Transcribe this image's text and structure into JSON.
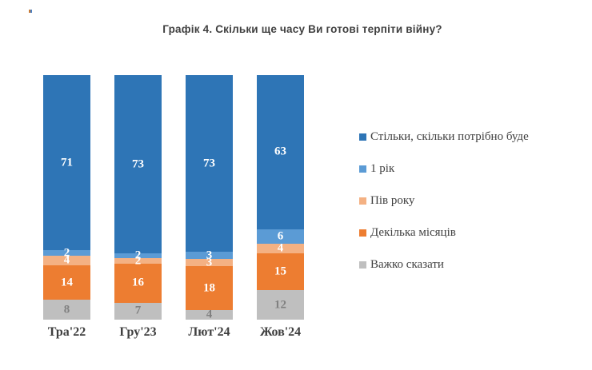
{
  "chart_data": {
    "type": "bar",
    "stacked": true,
    "orientation": "vertical",
    "title": "Графік 4. Скільки ще часу Ви готові терпіти війну?",
    "categories": [
      "Тра'22",
      "Гру'23",
      "Лют'24",
      "Жов'24"
    ],
    "series": [
      {
        "name": "Стільки, скільки потрібно буде",
        "color": "#2E75B6",
        "label_color": "#FFFFFF",
        "values": [
          71,
          73,
          73,
          63
        ]
      },
      {
        "name": "1 рік",
        "color": "#5B9BD5",
        "label_color": "#FFFFFF",
        "values": [
          2,
          2,
          3,
          6
        ]
      },
      {
        "name": "Пів року",
        "color": "#F4B183",
        "label_color": "#FFFFFF",
        "values": [
          4,
          2,
          3,
          4
        ]
      },
      {
        "name": "Декілька місяців",
        "color": "#ED7D31",
        "label_color": "#FFFFFF",
        "values": [
          14,
          16,
          18,
          15
        ]
      },
      {
        "name": "Важко сказати",
        "color": "#BFBFBF",
        "label_color": "#808080",
        "values": [
          8,
          7,
          4,
          12
        ]
      }
    ],
    "legend_position": "right",
    "grid": false,
    "axes_visible": false,
    "value_unit": "percent",
    "ylim": [
      0,
      101
    ]
  }
}
